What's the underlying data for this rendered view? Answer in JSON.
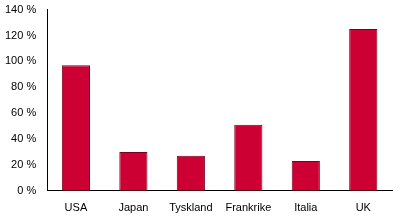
{
  "chart_data": {
    "type": "bar",
    "categories": [
      "USA",
      "Japan",
      "Tyskland",
      "Frankrike",
      "Italia",
      "UK"
    ],
    "values": [
      97,
      30,
      27,
      51,
      23,
      125
    ],
    "color": "#cc0033",
    "ylim": [
      0,
      140
    ],
    "yticks": [
      {
        "value": 0,
        "label": "0 %"
      },
      {
        "value": 20,
        "label": "20 %"
      },
      {
        "value": 40,
        "label": "40 %"
      },
      {
        "value": 60,
        "label": "60 %"
      },
      {
        "value": 80,
        "label": "80 %"
      },
      {
        "value": 100,
        "label": "100 %"
      },
      {
        "value": 120,
        "label": "120 %"
      },
      {
        "value": 140,
        "label": "140 %"
      }
    ],
    "grid": false
  }
}
